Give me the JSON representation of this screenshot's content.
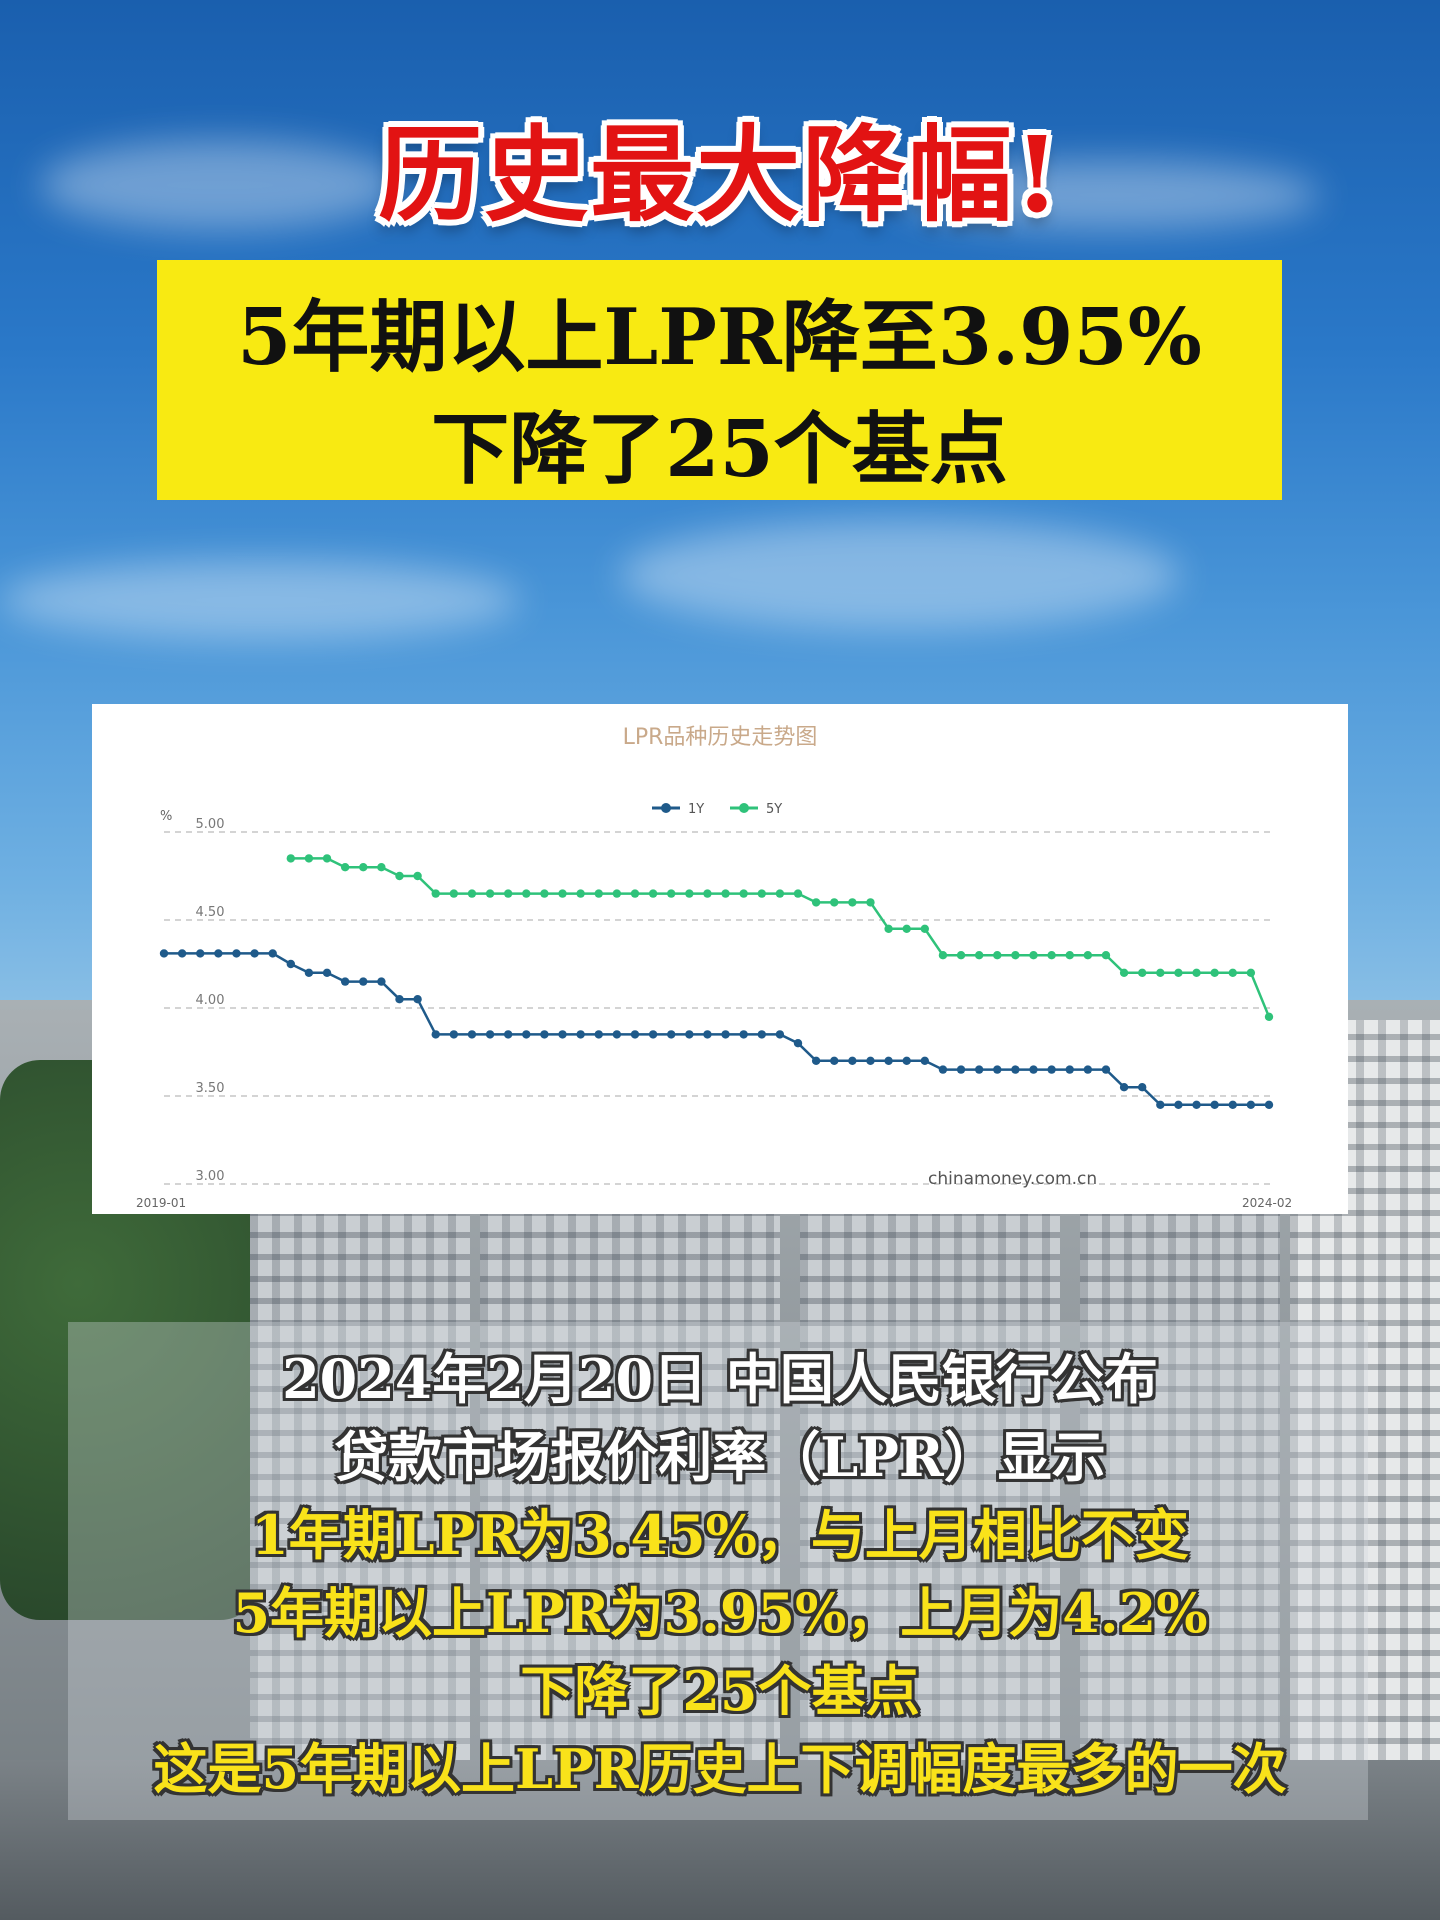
{
  "headline": "历史最大降幅!",
  "banner": {
    "line1": "5年期以上LPR降至3.95%",
    "line2": "下降了25个基点"
  },
  "chart_data": {
    "type": "line",
    "title": "LPR品种历史走势图",
    "ylabel": "%",
    "ylim": [
      3.0,
      5.0
    ],
    "yticks": [
      "5.00",
      "4.50",
      "4.00",
      "3.50",
      "3.00"
    ],
    "x_start_label": "2019-01",
    "x_end_label": "2024-02",
    "watermark": "chinamoney.com.cn",
    "grid": true,
    "legend_position": "top-center",
    "series": [
      {
        "name": "1Y",
        "color": "#1f5a8a",
        "values": [
          4.31,
          4.31,
          4.31,
          4.31,
          4.31,
          4.31,
          4.31,
          4.25,
          4.2,
          4.2,
          4.15,
          4.15,
          4.15,
          4.05,
          4.05,
          3.85,
          3.85,
          3.85,
          3.85,
          3.85,
          3.85,
          3.85,
          3.85,
          3.85,
          3.85,
          3.85,
          3.85,
          3.85,
          3.85,
          3.85,
          3.85,
          3.85,
          3.85,
          3.85,
          3.85,
          3.8,
          3.7,
          3.7,
          3.7,
          3.7,
          3.7,
          3.7,
          3.7,
          3.65,
          3.65,
          3.65,
          3.65,
          3.65,
          3.65,
          3.65,
          3.65,
          3.65,
          3.65,
          3.55,
          3.55,
          3.45,
          3.45,
          3.45,
          3.45,
          3.45,
          3.45,
          3.45
        ]
      },
      {
        "name": "5Y",
        "color": "#2fc27a",
        "values": [
          null,
          null,
          null,
          null,
          null,
          null,
          null,
          4.85,
          4.85,
          4.85,
          4.8,
          4.8,
          4.8,
          4.75,
          4.75,
          4.65,
          4.65,
          4.65,
          4.65,
          4.65,
          4.65,
          4.65,
          4.65,
          4.65,
          4.65,
          4.65,
          4.65,
          4.65,
          4.65,
          4.65,
          4.65,
          4.65,
          4.65,
          4.65,
          4.65,
          4.65,
          4.6,
          4.6,
          4.6,
          4.6,
          4.45,
          4.45,
          4.45,
          4.3,
          4.3,
          4.3,
          4.3,
          4.3,
          4.3,
          4.3,
          4.3,
          4.3,
          4.3,
          4.2,
          4.2,
          4.2,
          4.2,
          4.2,
          4.2,
          4.2,
          4.2,
          3.95
        ]
      }
    ]
  },
  "body": {
    "line1": "2024年2月20日 中国人民银行公布",
    "line2": "贷款市场报价利率（LPR）显示",
    "line3": "1年期LPR为3.45%，与上月相比不变",
    "line4": "5年期以上LPR为3.95%，上月为4.2%",
    "line5": "下降了25个基点",
    "line6": "这是5年期以上LPR历史上下调幅度最多的一次"
  }
}
